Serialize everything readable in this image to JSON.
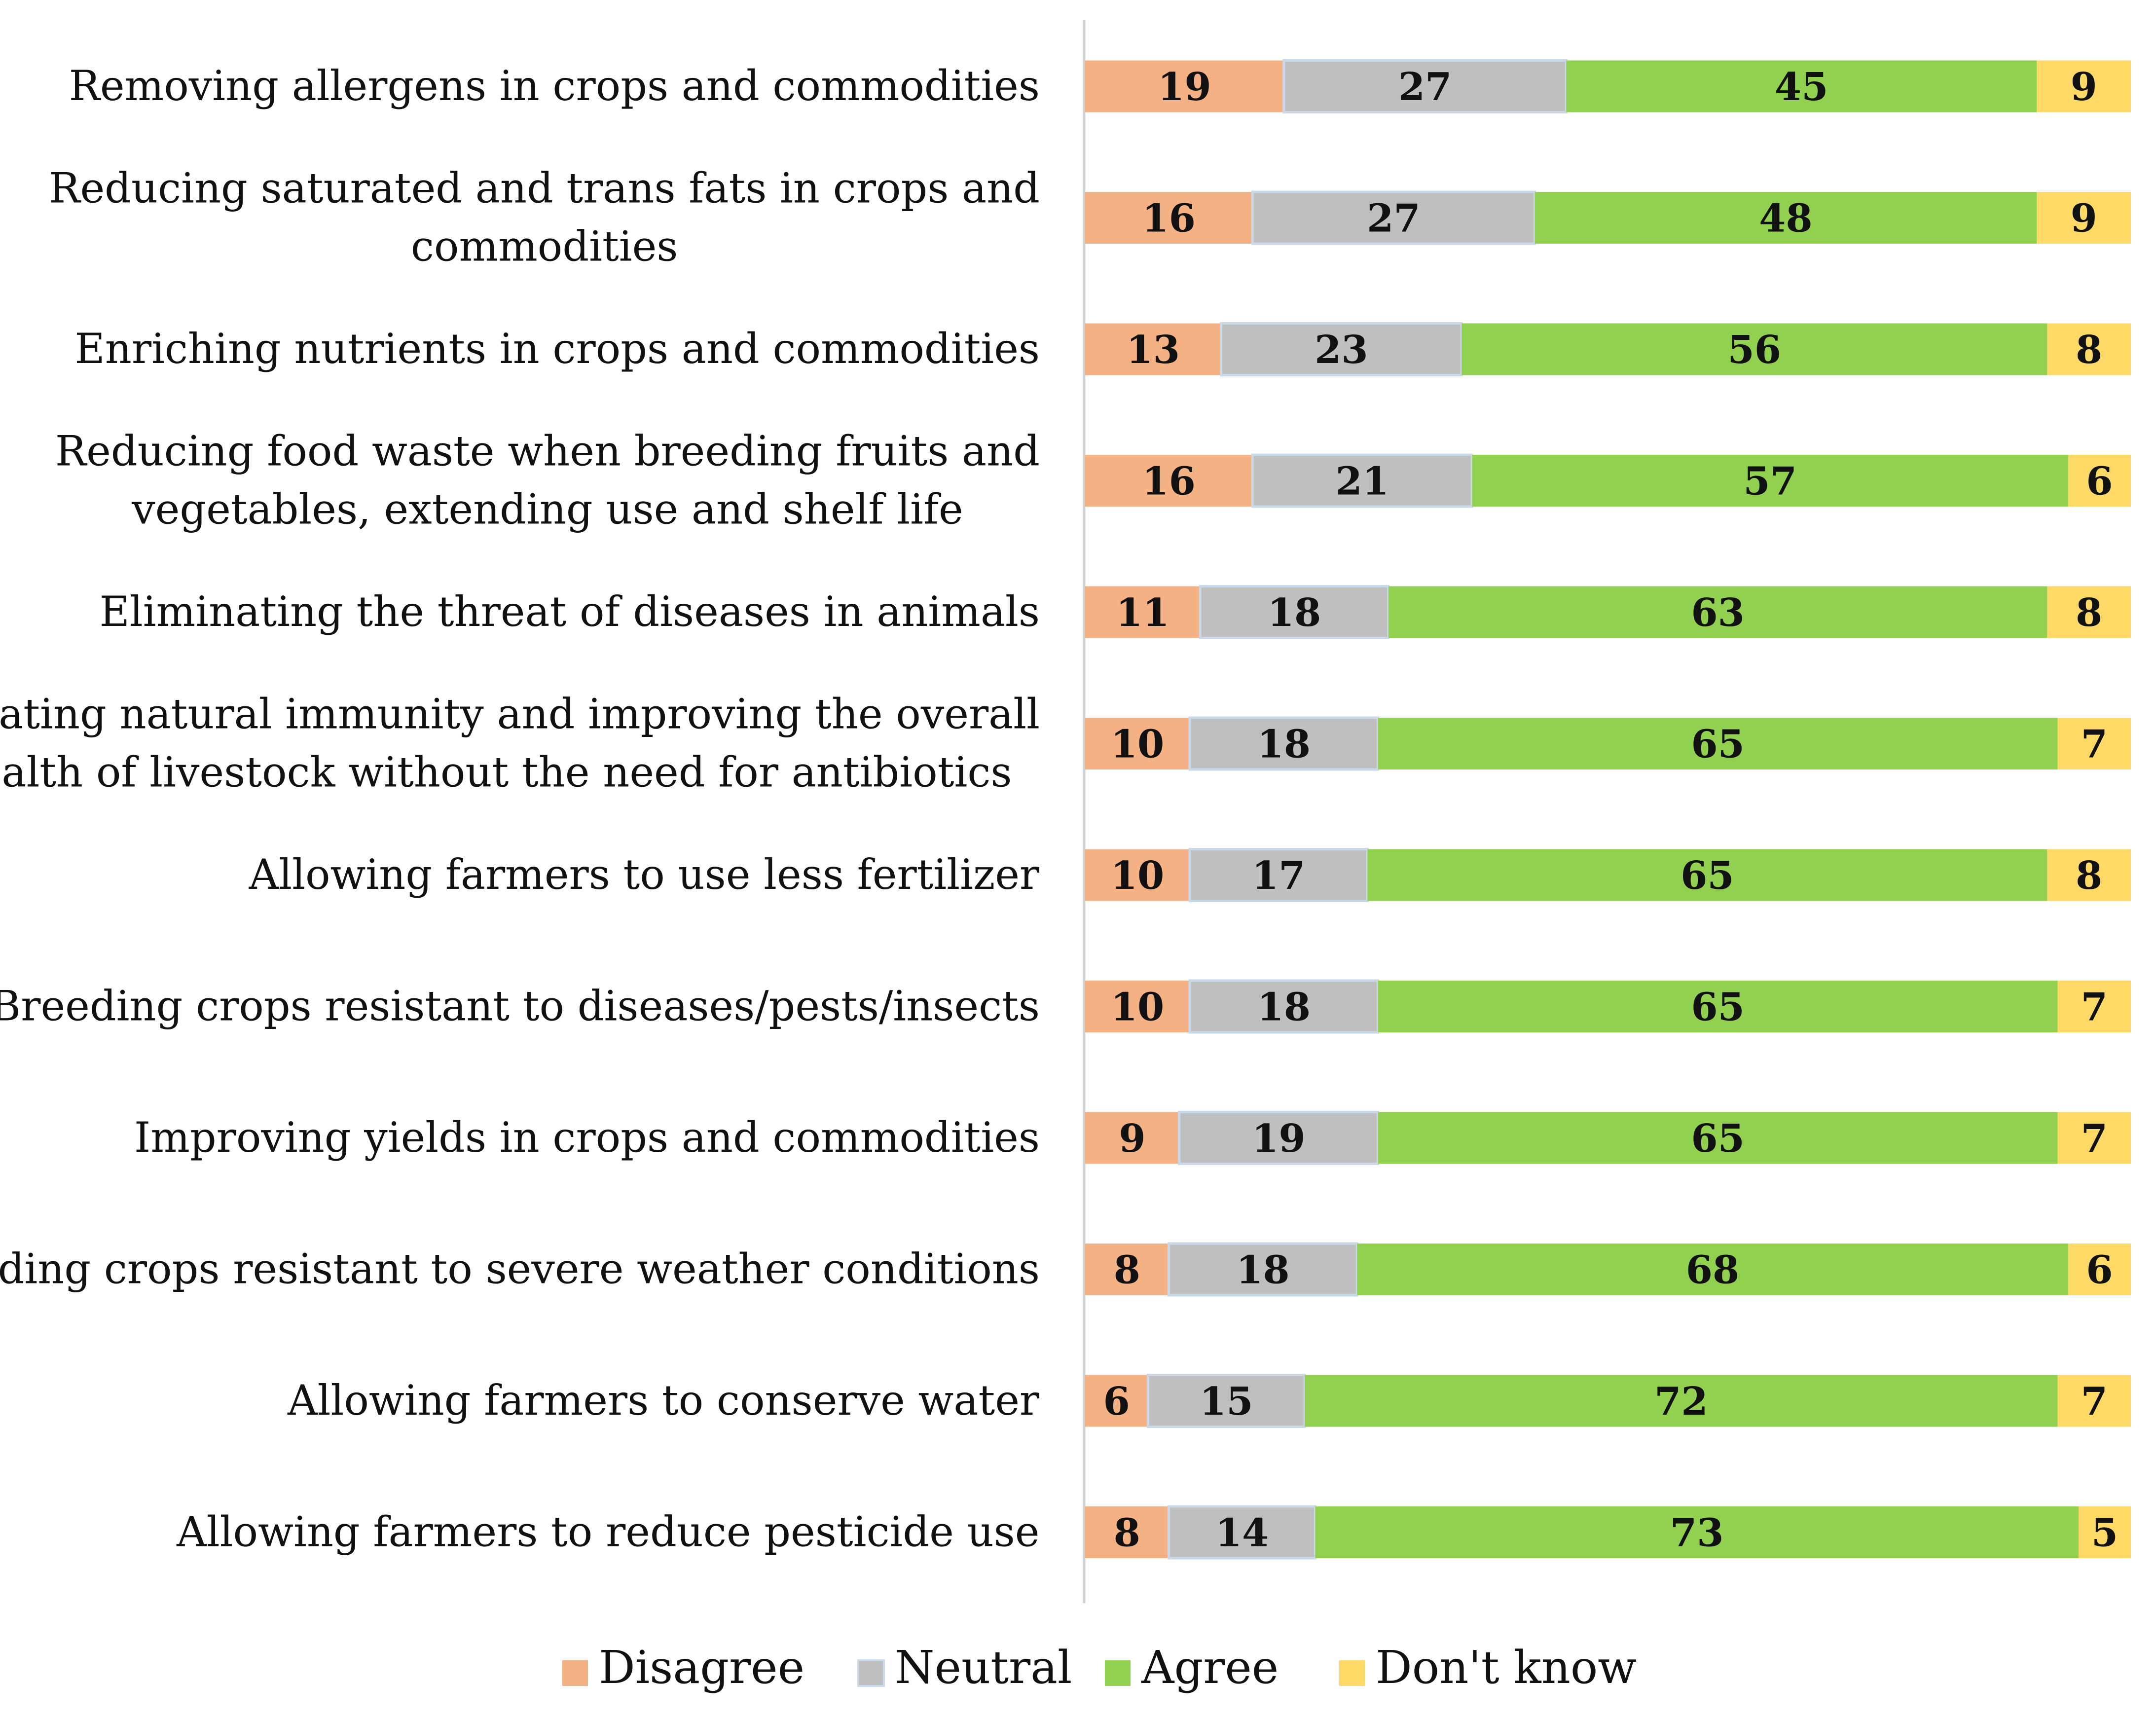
{
  "chart_data": {
    "type": "bar",
    "orientation": "horizontal",
    "stacked": true,
    "title": "",
    "xlabel": "",
    "ylabel": "",
    "xlim": [
      0,
      100
    ],
    "grid": false,
    "legend_position": "bottom",
    "categories": [
      [
        "Removing allergens in crops and commodities"
      ],
      [
        "Reducing saturated and trans fats in crops and",
        "commodities"
      ],
      [
        "Enriching nutrients in crops and commodities"
      ],
      [
        "Reducing food waste when breeding fruits and",
        "vegetables, extending use and shelf life"
      ],
      [
        "Eliminating the threat of diseases in animals"
      ],
      [
        "Creating natural immunity and improving the overall",
        "health of livestock without the need for antibiotics"
      ],
      [
        "Allowing farmers to use less fertilizer"
      ],
      [
        "Breeding crops resistant to diseases/pests/insects"
      ],
      [
        "Improving yields in crops and commodities"
      ],
      [
        "Breeding crops resistant to severe weather conditions"
      ],
      [
        "Allowing farmers to conserve water"
      ],
      [
        "Allowing farmers to reduce pesticide use"
      ]
    ],
    "series": [
      {
        "name": "Disagree",
        "color": "#F4B183",
        "values": [
          19,
          16,
          13,
          16,
          11,
          10,
          10,
          10,
          9,
          8,
          6,
          8
        ]
      },
      {
        "name": "Neutral",
        "color": "#BFBFBF",
        "values": [
          27,
          27,
          23,
          21,
          18,
          18,
          17,
          18,
          19,
          18,
          15,
          14
        ]
      },
      {
        "name": "Agree",
        "color": "#92D050",
        "values": [
          45,
          48,
          56,
          57,
          63,
          65,
          65,
          65,
          65,
          68,
          72,
          73
        ]
      },
      {
        "name": "Don't know",
        "color": "#FFD966",
        "values": [
          9,
          9,
          8,
          6,
          8,
          7,
          8,
          7,
          7,
          6,
          7,
          5
        ]
      }
    ]
  }
}
